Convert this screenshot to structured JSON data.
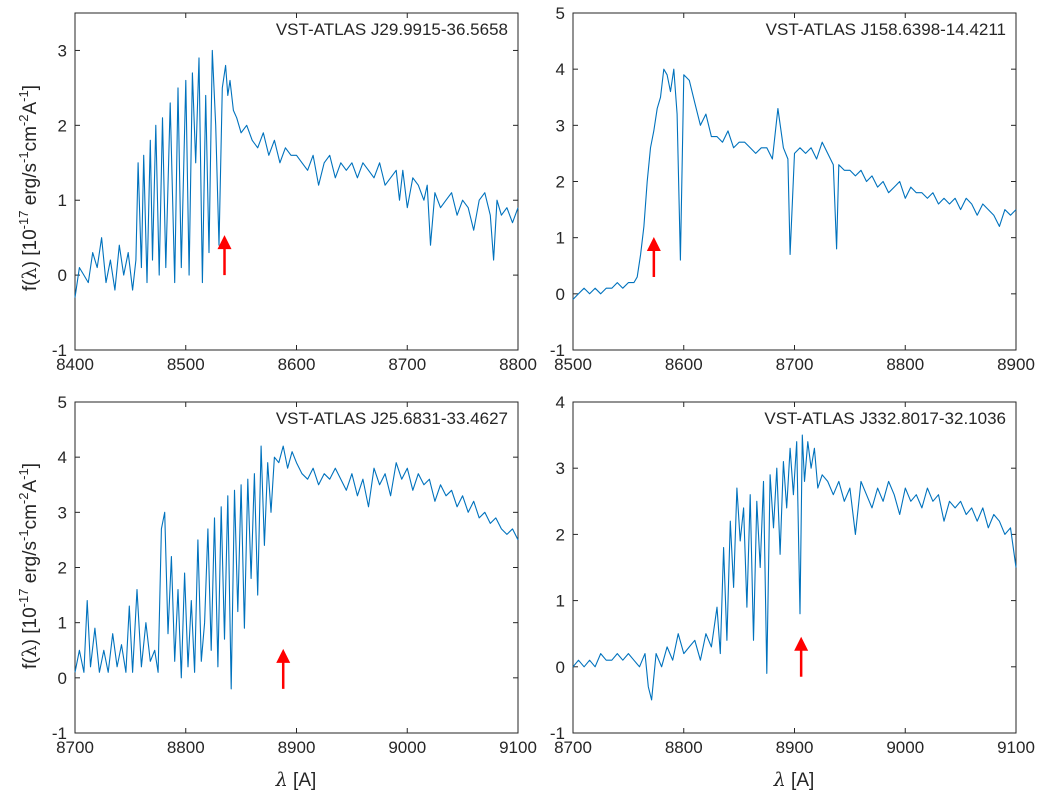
{
  "chart_data": [
    {
      "type": "line",
      "title": "VST-ATLAS J29.9915-36.5658",
      "xlabel": "",
      "ylabel": "f(λ) [10^-17 erg/s^-1cm^-2A^-1]",
      "xlim": [
        8400,
        8800
      ],
      "ylim": [
        -1,
        3.5
      ],
      "xticks": [
        8400,
        8500,
        8600,
        8700,
        8800
      ],
      "yticks": [
        -1,
        0,
        1,
        2,
        3
      ],
      "grid": false,
      "arrow_at": [
        8535,
        0
      ],
      "series": [
        {
          "color": "#0072BD",
          "x": [
            8400,
            8404,
            8408,
            8412,
            8416,
            8420,
            8424,
            8428,
            8432,
            8436,
            8440,
            8444,
            8448,
            8452,
            8455,
            8457,
            8460,
            8462,
            8465,
            8468,
            8470,
            8473,
            8476,
            8479,
            8482,
            8486,
            8490,
            8493,
            8496,
            8500,
            8503,
            8506,
            8509,
            8512,
            8515,
            8518,
            8521,
            8524,
            8527,
            8530,
            8533,
            8536,
            8538,
            8540,
            8543,
            8546,
            8550,
            8555,
            8560,
            8565,
            8570,
            8575,
            8580,
            8585,
            8590,
            8595,
            8600,
            8605,
            8610,
            8615,
            8620,
            8625,
            8630,
            8635,
            8640,
            8645,
            8650,
            8655,
            8660,
            8665,
            8670,
            8675,
            8680,
            8685,
            8690,
            8693,
            8696,
            8700,
            8705,
            8710,
            8715,
            8718,
            8721,
            8725,
            8730,
            8735,
            8740,
            8745,
            8750,
            8755,
            8760,
            8765,
            8770,
            8775,
            8778,
            8781,
            8785,
            8790,
            8795,
            8800
          ],
          "values": [
            -0.3,
            0.1,
            0.0,
            -0.1,
            0.3,
            0.1,
            0.5,
            -0.1,
            0.2,
            -0.2,
            0.4,
            0.0,
            0.3,
            -0.2,
            0.2,
            1.5,
            0.1,
            1.6,
            -0.1,
            1.8,
            0.2,
            2.0,
            0.0,
            2.1,
            0.1,
            2.3,
            -0.1,
            2.5,
            0.1,
            2.6,
            0.0,
            2.7,
            1.5,
            2.9,
            -0.1,
            2.4,
            0.3,
            3.0,
            2.0,
            0.4,
            2.5,
            2.8,
            2.4,
            2.6,
            2.2,
            2.1,
            1.9,
            2.0,
            1.8,
            1.7,
            1.9,
            1.6,
            1.8,
            1.5,
            1.7,
            1.6,
            1.6,
            1.5,
            1.4,
            1.6,
            1.2,
            1.5,
            1.6,
            1.3,
            1.5,
            1.4,
            1.5,
            1.3,
            1.5,
            1.4,
            1.3,
            1.5,
            1.2,
            1.3,
            1.4,
            1.0,
            1.4,
            0.9,
            1.3,
            1.2,
            1.0,
            1.2,
            0.4,
            1.1,
            0.9,
            1.0,
            1.1,
            0.8,
            1.0,
            0.9,
            0.6,
            1.0,
            1.1,
            0.8,
            0.2,
            1.0,
            0.8,
            0.9,
            0.7,
            0.9
          ]
        }
      ]
    },
    {
      "type": "line",
      "title": "VST-ATLAS J158.6398-14.4211",
      "xlabel": "",
      "ylabel": "",
      "xlim": [
        8500,
        8900
      ],
      "ylim": [
        -1,
        5
      ],
      "xticks": [
        8500,
        8600,
        8700,
        8800,
        8900
      ],
      "yticks": [
        -1,
        0,
        1,
        2,
        3,
        4,
        5
      ],
      "grid": false,
      "arrow_at": [
        8573,
        0.3
      ],
      "series": [
        {
          "color": "#0072BD",
          "x": [
            8500,
            8505,
            8510,
            8515,
            8520,
            8525,
            8530,
            8535,
            8540,
            8545,
            8550,
            8555,
            8558,
            8561,
            8564,
            8567,
            8570,
            8573,
            8576,
            8579,
            8582,
            8585,
            8588,
            8591,
            8594,
            8597,
            8600,
            8605,
            8610,
            8615,
            8620,
            8625,
            8630,
            8635,
            8640,
            8645,
            8650,
            8655,
            8660,
            8665,
            8670,
            8675,
            8680,
            8685,
            8690,
            8694,
            8696,
            8700,
            8705,
            8710,
            8715,
            8720,
            8725,
            8730,
            8735,
            8738,
            8740,
            8745,
            8750,
            8755,
            8760,
            8765,
            8770,
            8775,
            8780,
            8785,
            8790,
            8795,
            8800,
            8805,
            8810,
            8815,
            8820,
            8825,
            8830,
            8835,
            8840,
            8845,
            8850,
            8855,
            8860,
            8865,
            8870,
            8875,
            8880,
            8885,
            8890,
            8895,
            8900
          ],
          "values": [
            -0.1,
            0.0,
            0.1,
            0.0,
            0.1,
            0.0,
            0.1,
            0.1,
            0.2,
            0.1,
            0.2,
            0.2,
            0.3,
            0.7,
            1.2,
            2.0,
            2.6,
            2.9,
            3.3,
            3.5,
            4.0,
            3.9,
            3.6,
            4.0,
            3.2,
            0.6,
            3.9,
            3.8,
            3.4,
            3.0,
            3.2,
            2.8,
            2.8,
            2.7,
            2.9,
            2.6,
            2.7,
            2.7,
            2.6,
            2.5,
            2.6,
            2.6,
            2.4,
            3.3,
            2.6,
            2.4,
            0.7,
            2.5,
            2.6,
            2.5,
            2.6,
            2.4,
            2.7,
            2.5,
            2.3,
            0.8,
            2.3,
            2.2,
            2.2,
            2.1,
            2.2,
            2.0,
            2.1,
            1.9,
            2.0,
            1.8,
            1.9,
            2.0,
            1.7,
            1.9,
            1.8,
            1.8,
            1.7,
            1.8,
            1.6,
            1.7,
            1.6,
            1.7,
            1.5,
            1.7,
            1.6,
            1.4,
            1.6,
            1.5,
            1.4,
            1.2,
            1.5,
            1.4,
            1.5
          ]
        }
      ]
    },
    {
      "type": "line",
      "title": "VST-ATLAS J25.6831-33.4627",
      "xlabel": "λ [A]",
      "ylabel": "f(λ) [10^-17 erg/s^-1cm^-2A^-1]",
      "xlim": [
        8700,
        9100
      ],
      "ylim": [
        -1,
        5
      ],
      "xticks": [
        8700,
        8800,
        8900,
        9000,
        9100
      ],
      "yticks": [
        -1,
        0,
        1,
        2,
        3,
        4,
        5
      ],
      "grid": false,
      "arrow_at": [
        8888,
        -0.2
      ],
      "series": [
        {
          "color": "#0072BD",
          "x": [
            8700,
            8704,
            8708,
            8711,
            8714,
            8718,
            8722,
            8726,
            8730,
            8734,
            8738,
            8742,
            8746,
            8749,
            8752,
            8756,
            8760,
            8764,
            8768,
            8772,
            8775,
            8778,
            8781,
            8784,
            8787,
            8790,
            8793,
            8796,
            8799,
            8802,
            8805,
            8808,
            8811,
            8814,
            8817,
            8820,
            8823,
            8826,
            8829,
            8832,
            8835,
            8838,
            8841,
            8844,
            8847,
            8850,
            8853,
            8856,
            8859,
            8862,
            8865,
            8868,
            8871,
            8874,
            8877,
            8880,
            8884,
            8888,
            8892,
            8896,
            8900,
            8905,
            8910,
            8915,
            8920,
            8925,
            8930,
            8935,
            8940,
            8945,
            8950,
            8955,
            8960,
            8965,
            8970,
            8975,
            8980,
            8985,
            8990,
            8995,
            9000,
            9005,
            9010,
            9015,
            9020,
            9025,
            9030,
            9035,
            9040,
            9045,
            9050,
            9055,
            9060,
            9065,
            9070,
            9075,
            9080,
            9085,
            9090,
            9095,
            9100
          ],
          "values": [
            0.1,
            0.5,
            0.1,
            1.4,
            0.2,
            0.9,
            0.1,
            0.5,
            0.1,
            0.8,
            0.2,
            0.6,
            0.1,
            1.3,
            0.1,
            1.6,
            0.2,
            1.0,
            0.3,
            0.5,
            0.1,
            2.7,
            3.0,
            0.8,
            2.2,
            0.3,
            1.6,
            0.0,
            1.9,
            0.2,
            1.4,
            0.1,
            2.5,
            0.3,
            1.0,
            2.7,
            0.5,
            2.9,
            0.2,
            3.1,
            0.7,
            3.3,
            -0.2,
            3.4,
            1.2,
            3.5,
            0.9,
            3.6,
            1.8,
            3.7,
            1.5,
            4.2,
            2.4,
            3.9,
            3.0,
            4.0,
            3.9,
            4.2,
            3.8,
            4.1,
            3.9,
            3.7,
            3.6,
            3.8,
            3.5,
            3.7,
            3.6,
            3.8,
            3.6,
            3.4,
            3.7,
            3.3,
            3.6,
            3.1,
            3.8,
            3.5,
            3.7,
            3.3,
            3.9,
            3.6,
            3.8,
            3.4,
            3.7,
            3.5,
            3.6,
            3.2,
            3.5,
            3.3,
            3.4,
            3.1,
            3.3,
            3.0,
            3.2,
            2.9,
            3.0,
            2.8,
            2.9,
            2.7,
            2.6,
            2.7,
            2.5
          ]
        }
      ]
    },
    {
      "type": "line",
      "title": "VST-ATLAS J332.8017-32.1036",
      "xlabel": "λ [A]",
      "ylabel": "",
      "xlim": [
        8700,
        9100
      ],
      "ylim": [
        -1,
        4
      ],
      "xticks": [
        8700,
        8800,
        8900,
        9000,
        9100
      ],
      "yticks": [
        -1,
        0,
        1,
        2,
        3,
        4
      ],
      "grid": false,
      "arrow_at": [
        8906,
        -0.15
      ],
      "series": [
        {
          "color": "#0072BD",
          "x": [
            8700,
            8705,
            8710,
            8715,
            8720,
            8725,
            8730,
            8735,
            8740,
            8745,
            8750,
            8755,
            8760,
            8765,
            8768,
            8771,
            8775,
            8780,
            8785,
            8790,
            8795,
            8800,
            8805,
            8810,
            8815,
            8820,
            8825,
            8830,
            8833,
            8836,
            8839,
            8842,
            8845,
            8848,
            8851,
            8854,
            8857,
            8860,
            8863,
            8866,
            8869,
            8872,
            8875,
            8878,
            8881,
            8884,
            8887,
            8890,
            8893,
            8896,
            8899,
            8902,
            8905,
            8907,
            8909,
            8912,
            8915,
            8918,
            8921,
            8925,
            8930,
            8935,
            8940,
            8945,
            8950,
            8955,
            8960,
            8965,
            8970,
            8975,
            8980,
            8985,
            8990,
            8995,
            9000,
            9005,
            9010,
            9015,
            9020,
            9025,
            9030,
            9035,
            9040,
            9045,
            9050,
            9055,
            9060,
            9065,
            9070,
            9075,
            9080,
            9085,
            9090,
            9095,
            9100
          ],
          "values": [
            0.0,
            0.1,
            0.0,
            0.1,
            0.0,
            0.2,
            0.1,
            0.1,
            0.2,
            0.1,
            0.2,
            0.1,
            0.0,
            0.2,
            -0.3,
            -0.5,
            0.2,
            0.0,
            0.3,
            0.1,
            0.5,
            0.2,
            0.3,
            0.4,
            0.1,
            0.5,
            0.3,
            0.9,
            0.2,
            1.8,
            0.4,
            2.2,
            1.2,
            2.7,
            1.9,
            2.4,
            0.9,
            2.6,
            0.4,
            2.5,
            1.5,
            2.8,
            -0.1,
            2.9,
            2.1,
            3.0,
            1.7,
            3.1,
            2.4,
            3.3,
            2.6,
            3.4,
            0.8,
            3.5,
            2.8,
            3.4,
            3.0,
            3.3,
            2.7,
            2.9,
            2.8,
            2.6,
            2.8,
            2.5,
            2.7,
            2.0,
            2.8,
            2.6,
            2.4,
            2.7,
            2.5,
            2.8,
            2.6,
            2.3,
            2.7,
            2.5,
            2.6,
            2.4,
            2.7,
            2.5,
            2.6,
            2.2,
            2.5,
            2.4,
            2.5,
            2.3,
            2.4,
            2.2,
            2.4,
            2.1,
            2.3,
            2.2,
            2.0,
            2.1,
            1.5
          ]
        }
      ]
    }
  ]
}
